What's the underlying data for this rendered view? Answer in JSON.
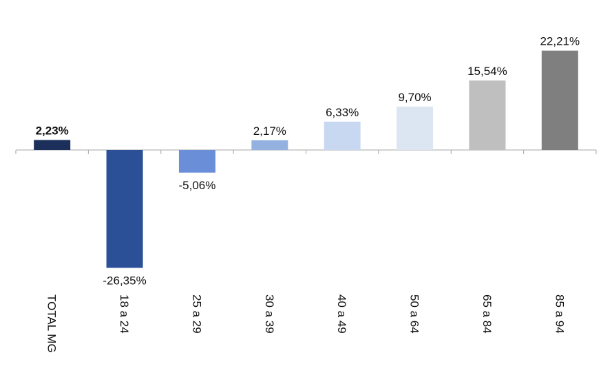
{
  "chart_data": {
    "type": "bar",
    "title": "",
    "xlabel": "",
    "ylabel": "",
    "categories": [
      "TOTAL MG",
      "18 a 24",
      "25 a 29",
      "30 a 39",
      "40 a 49",
      "50 a 64",
      "65 a 84",
      "85 a 94"
    ],
    "values": [
      2.23,
      -26.35,
      -5.06,
      2.17,
      6.33,
      9.7,
      15.54,
      22.21
    ],
    "value_labels": [
      "2,23%",
      "-26,35%",
      "-5,06%",
      "2,17%",
      "6,33%",
      "9,70%",
      "15,54%",
      "22,21%"
    ],
    "highlight_bold": [
      true,
      false,
      false,
      false,
      false,
      false,
      false,
      false
    ],
    "bar_colors": [
      "#1c2f5a",
      "#2b5097",
      "#6a8fd8",
      "#94b1e0",
      "#c9d8f1",
      "#dce6f2",
      "#bfbfbf",
      "#7f7f7f"
    ],
    "ylim": [
      -27.5,
      24
    ],
    "grid": false,
    "legend": "none"
  }
}
